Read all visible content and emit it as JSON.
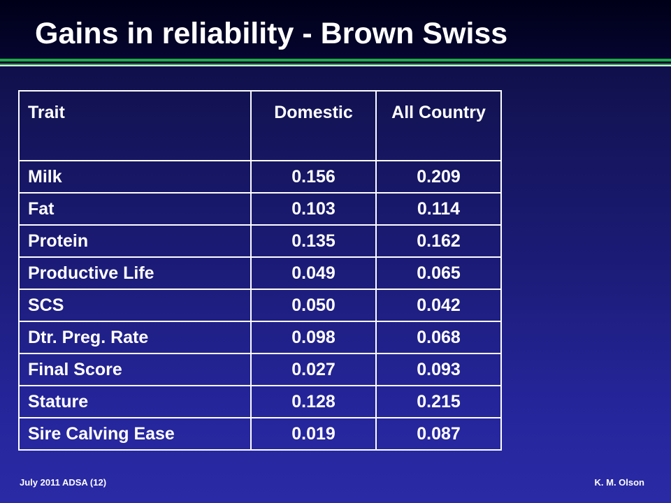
{
  "slide": {
    "title": "Gains in reliability - Brown Swiss"
  },
  "table": {
    "headers": [
      "Trait",
      "Domestic",
      "All Country"
    ],
    "rows": [
      [
        "Milk",
        "0.156",
        "0.209"
      ],
      [
        "Fat",
        "0.103",
        "0.114"
      ],
      [
        "Protein",
        "0.135",
        "0.162"
      ],
      [
        "Productive Life",
        "0.049",
        "0.065"
      ],
      [
        "SCS",
        "0.050",
        "0.042"
      ],
      [
        "Dtr. Preg. Rate",
        "0.098",
        "0.068"
      ],
      [
        "Final Score",
        "0.027",
        "0.093"
      ],
      [
        "Stature",
        "0.128",
        "0.215"
      ],
      [
        "Sire Calving Ease",
        "0.019",
        "0.087"
      ]
    ]
  },
  "footer": {
    "left": "July 2011 ADSA (12)",
    "right": "K. M. Olson"
  },
  "colors": {
    "background_top": "#0b0b3a",
    "background_bottom": "#2a2aa6",
    "accent_green": "#22a846",
    "text": "#ffffff"
  }
}
